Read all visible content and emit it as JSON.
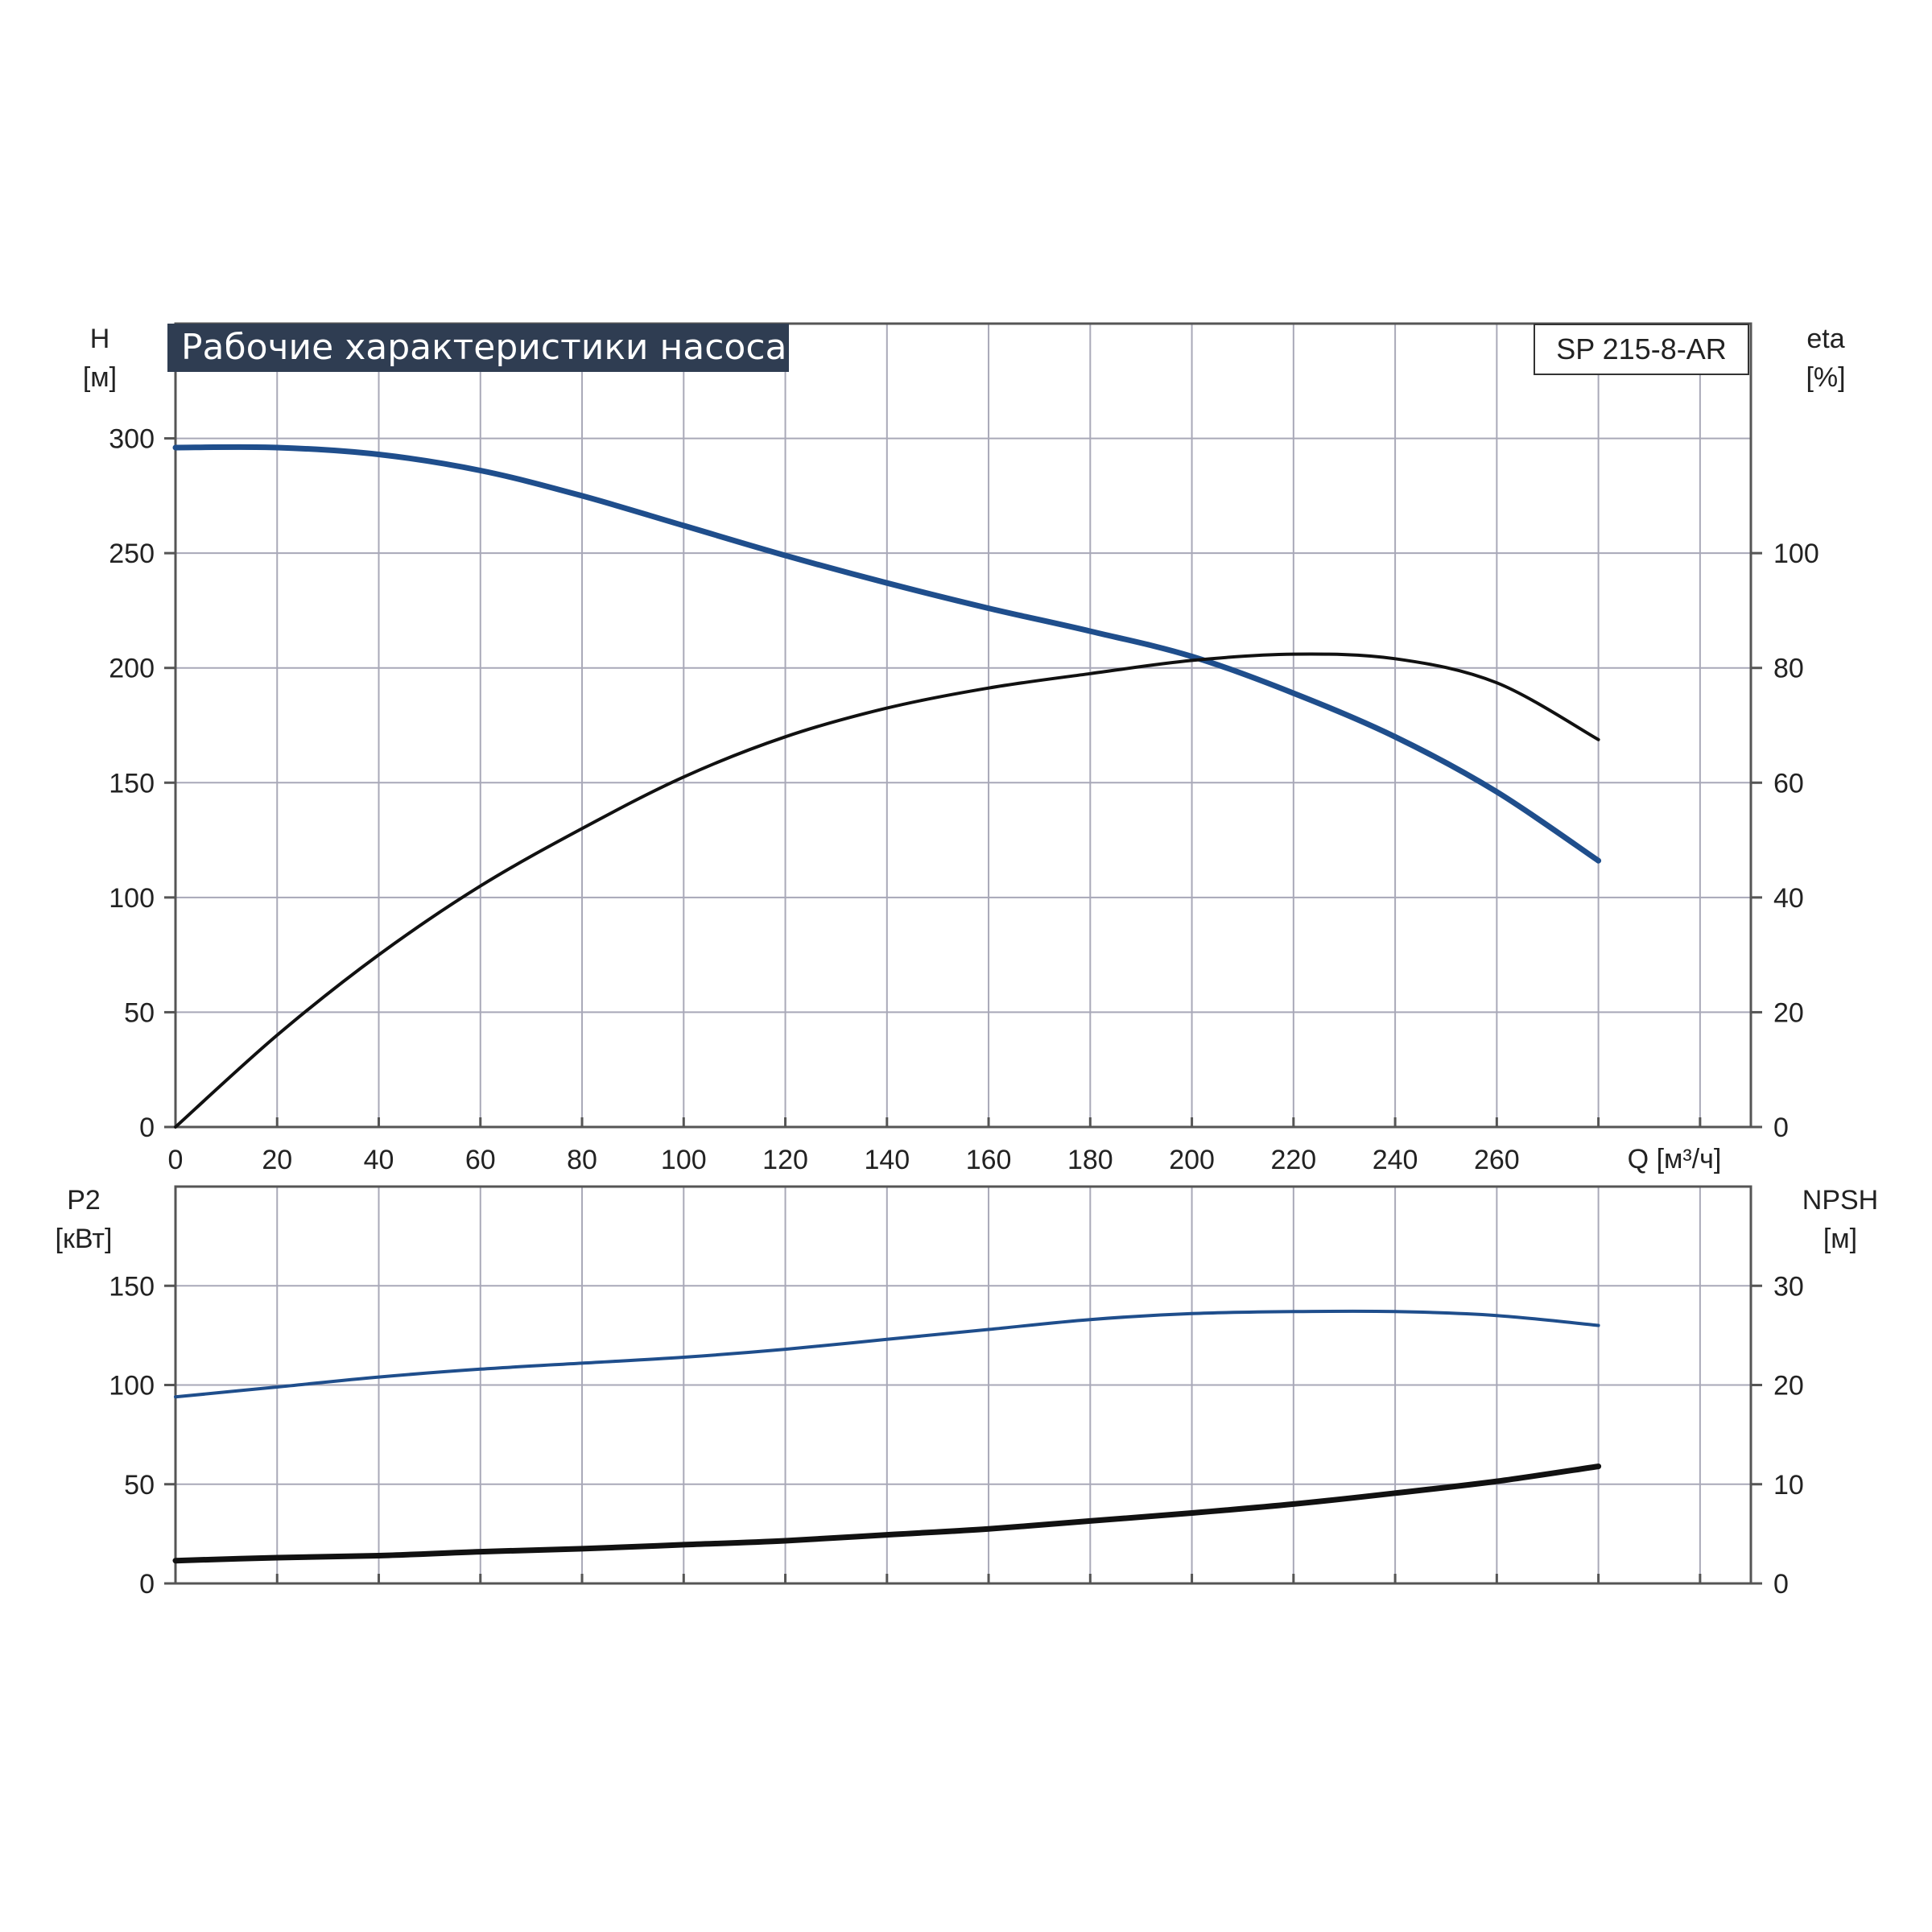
{
  "colors": {
    "head_curve": "#1f4e8c",
    "efficiency_curve": "#111111",
    "power_curve": "#1f4e8c",
    "npsh_curve": "#111111",
    "grid": "#a9a9b8",
    "frame": "#555555",
    "title_bg": "#2f3d52",
    "title_fg": "#ffffff"
  },
  "chart_data": [
    {
      "type": "line",
      "title": "Рабочие характеристики насоса",
      "model_label": "SP 215-8-AR",
      "xlabel": "Q [м³/ч]",
      "ylabel": "H",
      "ylabel_unit": "[м]",
      "y2label": "eta",
      "y2label_unit": "[%]",
      "xlim": [
        0,
        310
      ],
      "ylim": [
        0,
        350
      ],
      "y2lim": [
        0,
        140
      ],
      "x_ticks": [
        0,
        20,
        40,
        60,
        80,
        100,
        120,
        140,
        160,
        180,
        200,
        220,
        240,
        260
      ],
      "y_ticks": [
        0,
        50,
        100,
        150,
        200,
        250,
        300
      ],
      "y2_ticks": [
        0,
        20,
        40,
        60,
        80,
        100
      ],
      "grid": true,
      "series": [
        {
          "axis": "left",
          "x": [
            0,
            20,
            40,
            60,
            80,
            100,
            120,
            140,
            160,
            180,
            200,
            220,
            240,
            260,
            280
          ],
          "values": [
            296,
            296,
            293,
            286,
            275,
            262,
            249,
            237,
            226,
            216,
            205,
            189,
            170,
            146,
            116
          ]
        },
        {
          "axis": "right",
          "x": [
            0,
            20,
            40,
            60,
            80,
            100,
            120,
            140,
            160,
            180,
            200,
            220,
            240,
            260,
            280
          ],
          "values": [
            0,
            16,
            30,
            42,
            52,
            61,
            68,
            73,
            76.5,
            79,
            81.3,
            82.4,
            81.6,
            77.4,
            67.5
          ]
        }
      ]
    },
    {
      "type": "line",
      "ylabel": "P2",
      "ylabel_unit": "[кВт]",
      "y2label": "NPSH",
      "y2label_unit": "[м]",
      "xlim": [
        0,
        310
      ],
      "ylim": [
        0,
        200
      ],
      "y2lim": [
        0,
        40
      ],
      "y_ticks": [
        0,
        50,
        100,
        150
      ],
      "y2_ticks": [
        0,
        10,
        20,
        30
      ],
      "grid": true,
      "series": [
        {
          "axis": "left",
          "x": [
            0,
            20,
            40,
            60,
            80,
            100,
            120,
            140,
            160,
            180,
            200,
            220,
            240,
            260,
            280
          ],
          "values": [
            94,
            99,
            104,
            108,
            111,
            114,
            118,
            123,
            128,
            133,
            136,
            137,
            137,
            135,
            130
          ]
        },
        {
          "axis": "right",
          "x": [
            0,
            20,
            40,
            60,
            80,
            100,
            120,
            140,
            160,
            180,
            200,
            220,
            240,
            260,
            280
          ],
          "values": [
            2.3,
            2.6,
            2.8,
            3.2,
            3.5,
            3.9,
            4.3,
            4.9,
            5.5,
            6.3,
            7.1,
            8.0,
            9.1,
            10.3,
            11.8
          ]
        }
      ]
    }
  ]
}
